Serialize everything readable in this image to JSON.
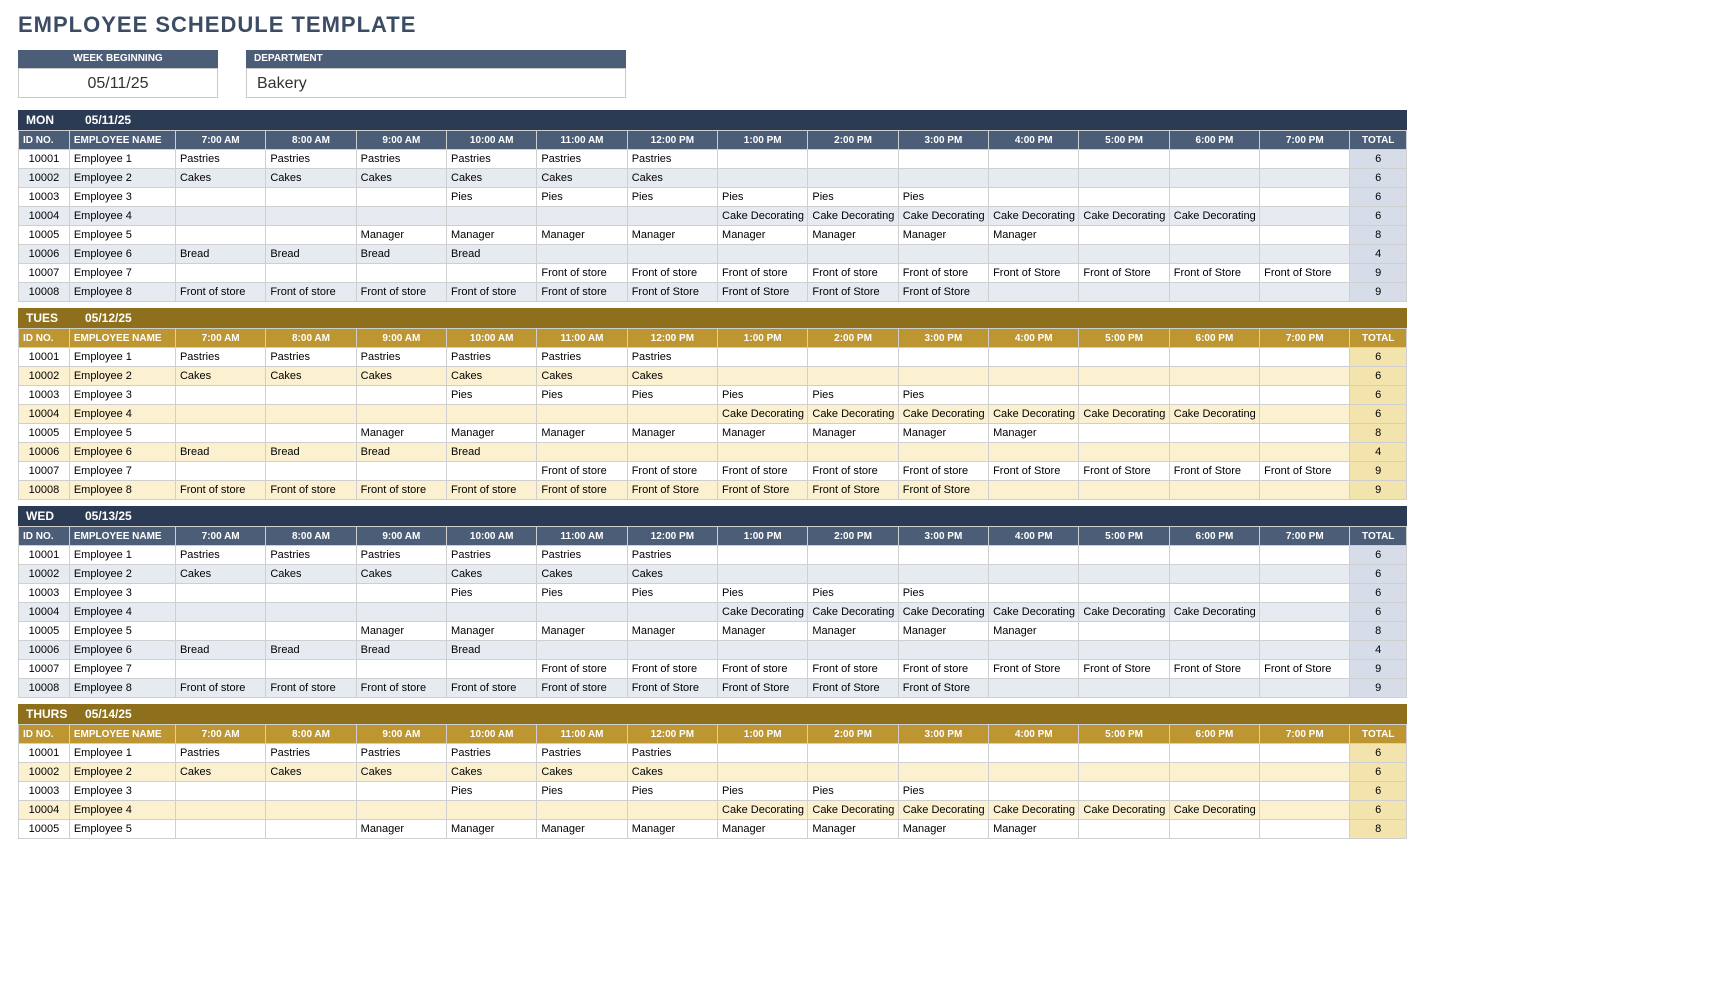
{
  "title": "EMPLOYEE SCHEDULE TEMPLATE",
  "meta": {
    "week_label": "WEEK BEGINNING",
    "week_value": "05/11/25",
    "dept_label": "DEPARTMENT",
    "dept_value": "Bakery"
  },
  "columns": {
    "id": "ID NO.",
    "name": "EMPLOYEE NAME",
    "hours": [
      "7:00 AM",
      "8:00 AM",
      "9:00 AM",
      "10:00 AM",
      "11:00 AM",
      "12:00 PM",
      "1:00 PM",
      "2:00 PM",
      "3:00 PM",
      "4:00 PM",
      "5:00 PM",
      "6:00 PM",
      "7:00 PM"
    ],
    "total": "TOTAL"
  },
  "themes": {
    "navy": {
      "bar_bg": "#2c3b54",
      "hdr_bg": "#4c5d78",
      "row_alt_bg": "#e6ebf2",
      "total_bg": "#d6dde8"
    },
    "gold": {
      "bar_bg": "#8d6f1c",
      "hdr_bg": "#bd9531",
      "row_alt_bg": "#fbf0cf",
      "total_bg": "#f3e3ad"
    }
  },
  "employee_rows": [
    {
      "id": "10001",
      "name": "Employee 1",
      "cells": [
        "Pastries",
        "Pastries",
        "Pastries",
        "Pastries",
        "Pastries",
        "Pastries",
        "",
        "",
        "",
        "",
        "",
        "",
        ""
      ],
      "total": "6"
    },
    {
      "id": "10002",
      "name": "Employee 2",
      "cells": [
        "Cakes",
        "Cakes",
        "Cakes",
        "Cakes",
        "Cakes",
        "Cakes",
        "",
        "",
        "",
        "",
        "",
        "",
        ""
      ],
      "total": "6"
    },
    {
      "id": "10003",
      "name": "Employee 3",
      "cells": [
        "",
        "",
        "",
        "Pies",
        "Pies",
        "Pies",
        "Pies",
        "Pies",
        "Pies",
        "",
        "",
        "",
        ""
      ],
      "total": "6"
    },
    {
      "id": "10004",
      "name": "Employee 4",
      "cells": [
        "",
        "",
        "",
        "",
        "",
        "",
        "Cake Decorating",
        "Cake Decorating",
        "Cake Decorating",
        "Cake Decorating",
        "Cake Decorating",
        "Cake Decorating",
        ""
      ],
      "total": "6"
    },
    {
      "id": "10005",
      "name": "Employee 5",
      "cells": [
        "",
        "",
        "Manager",
        "Manager",
        "Manager",
        "Manager",
        "Manager",
        "Manager",
        "Manager",
        "Manager",
        "",
        "",
        ""
      ],
      "total": "8"
    },
    {
      "id": "10006",
      "name": "Employee 6",
      "cells": [
        "Bread",
        "Bread",
        "Bread",
        "Bread",
        "",
        "",
        "",
        "",
        "",
        "",
        "",
        "",
        ""
      ],
      "total": "4"
    },
    {
      "id": "10007",
      "name": "Employee 7",
      "cells": [
        "",
        "",
        "",
        "",
        "Front of store",
        "Front of store",
        "Front of store",
        "Front of store",
        "Front of store",
        "Front of Store",
        "Front of Store",
        "Front of Store",
        "Front of Store"
      ],
      "total": "9"
    },
    {
      "id": "10008",
      "name": "Employee 8",
      "cells": [
        "Front of store",
        "Front of store",
        "Front of store",
        "Front of store",
        "Front of store",
        "Front of Store",
        "Front of Store",
        "Front of Store",
        "Front of Store",
        "",
        "",
        "",
        ""
      ],
      "total": "9"
    }
  ],
  "days": [
    {
      "dow": "MON",
      "date": "05/11/25",
      "theme": "navy"
    },
    {
      "dow": "TUES",
      "date": "05/12/25",
      "theme": "gold"
    },
    {
      "dow": "WED",
      "date": "05/13/25",
      "theme": "navy"
    },
    {
      "dow": "THURS",
      "date": "05/14/25",
      "theme": "gold",
      "cutoff": 5
    }
  ]
}
